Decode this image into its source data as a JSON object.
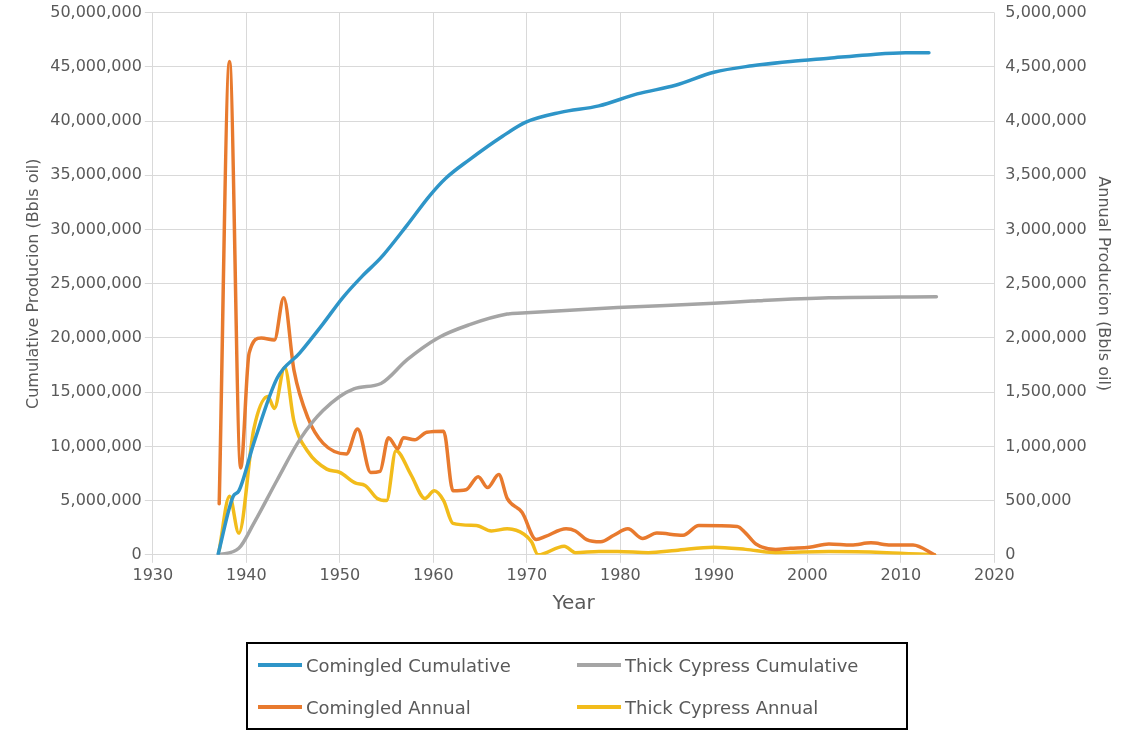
{
  "chart_data": {
    "type": "line",
    "xlabel": "Year",
    "ylabel": "Cumulative Producion (Bbls oil)",
    "y2label": "Annual Producion (Bbls oil)",
    "xlim": [
      1930,
      2020
    ],
    "xticks": [
      1930,
      1940,
      1950,
      1960,
      1970,
      1980,
      1990,
      2000,
      2010,
      2020
    ],
    "ylim": [
      0,
      50000000
    ],
    "yticks": [
      0,
      {
        "value": 5000000,
        "label": "5,000,000"
      },
      {
        "value": 10000000,
        "label": "10,000,000"
      },
      {
        "value": 15000000,
        "label": "15,000,000"
      },
      {
        "value": 20000000,
        "label": "20,000,000"
      },
      {
        "value": 25000000,
        "label": "25,000,000"
      },
      {
        "value": 30000000,
        "label": "30,000,000"
      },
      {
        "value": 35000000,
        "label": "35,000,000"
      },
      {
        "value": 40000000,
        "label": "40,000,000"
      },
      {
        "value": 45000000,
        "label": "45,000,000"
      },
      {
        "value": 50000000,
        "label": "50,000,000"
      }
    ],
    "y2lim": [
      0,
      5000000
    ],
    "y2ticks": [
      0,
      {
        "value": 500000,
        "label": "500,000"
      },
      {
        "value": 1000000,
        "label": "1,000,000"
      },
      {
        "value": 1500000,
        "label": "1,500,000"
      },
      {
        "value": 2000000,
        "label": "2,000,000"
      },
      {
        "value": 2500000,
        "label": "2,500,000"
      },
      {
        "value": 3000000,
        "label": "3,000,000"
      },
      {
        "value": 3500000,
        "label": "3,500,000"
      },
      {
        "value": 4000000,
        "label": "4,000,000"
      },
      {
        "value": 4500000,
        "label": "4,500,000"
      },
      {
        "value": 5000000,
        "label": "5,000,000"
      }
    ],
    "grid": true,
    "legend": "bottom",
    "marker": "none",
    "line_style": "solid",
    "series": [
      {
        "name": "Comingled Cumulative",
        "color": "#2e95c8",
        "x": [
          1937,
          1938.6,
          1939.2,
          1940.8,
          1943.3,
          1945.7,
          1948.2,
          1950.3,
          1952.4,
          1954.4,
          1957.2,
          1959.6,
          1961.3,
          1963.8,
          1967.4,
          1969.9,
          1973.6,
          1977.7,
          1981.8,
          1985.9,
          1990,
          1994.1,
          1998.2,
          2002.3,
          2006.4,
          2010.5,
          2013
        ],
        "values": [
          100000,
          5400000,
          5900000,
          10300000,
          16300000,
          18600000,
          21300000,
          23700000,
          25700000,
          27400000,
          30400000,
          33100000,
          34700000,
          36400000,
          38600000,
          39900000,
          40800000,
          41400000,
          42500000,
          43300000,
          44500000,
          45100000,
          45500000,
          45800000,
          46100000,
          46300000,
          46300000
        ]
      },
      {
        "name": "Thick Cypress Cumulative",
        "color": "#a5a5a5",
        "x": [
          1937,
          1939.2,
          1940.8,
          1943.3,
          1945.7,
          1948.2,
          1951.5,
          1954.4,
          1957.2,
          1960.5,
          1963.8,
          1967.9,
          1969.5,
          1979.7,
          1990,
          1994.1,
          2002.3,
          2013.8
        ],
        "values": [
          0,
          600000,
          2900000,
          6900000,
          10600000,
          13300000,
          15300000,
          15800000,
          18000000,
          20000000,
          21200000,
          22200000,
          22300000,
          22800000,
          23200000,
          23400000,
          23700000,
          23800000
        ]
      },
      {
        "name": "Comingled Annual",
        "color": "#e87a2e",
        "axis": "y2",
        "x": [
          1937.1,
          1938.2,
          1939.4,
          1940.3,
          1941.6,
          1943,
          1944,
          1945.1,
          1946.6,
          1948.2,
          1950.7,
          1951.9,
          1953.3,
          1954.3,
          1955.2,
          1956.2,
          1956.8,
          1958,
          1959.3,
          1961.1,
          1962.1,
          1963.5,
          1964.8,
          1965.8,
          1967,
          1967.9,
          1969.5,
          1971,
          1972,
          1974.2,
          1975.2,
          1976.4,
          1977.9,
          1979.3,
          1980.8,
          1982.4,
          1983.9,
          1986.7,
          1988.4,
          1992.5,
          1993.4,
          1994.5,
          1996.6,
          1998.2,
          2000.2,
          2002.3,
          2004.7,
          2006.8,
          2008.9,
          2011.3,
          2013.6
        ],
        "values": [
          470000,
          4550000,
          800000,
          1860000,
          2000000,
          1980000,
          2370000,
          1700000,
          1260000,
          1030000,
          930000,
          1160000,
          760000,
          770000,
          1080000,
          980000,
          1080000,
          1060000,
          1130000,
          1140000,
          590000,
          600000,
          720000,
          620000,
          740000,
          520000,
          390000,
          140000,
          170000,
          240000,
          220000,
          140000,
          120000,
          180000,
          240000,
          150000,
          200000,
          180000,
          270000,
          260000,
          200000,
          100000,
          50000,
          60000,
          70000,
          100000,
          90000,
          110000,
          90000,
          90000,
          0
        ]
      },
      {
        "name": "Thick Cypress Annual",
        "color": "#f2bc1b",
        "axis": "y2",
        "x": [
          1937.1,
          1938.2,
          1939.2,
          1940.8,
          1942.3,
          1943,
          1944.1,
          1945.1,
          1946.6,
          1948.6,
          1950,
          1951.7,
          1952.7,
          1954,
          1955,
          1956,
          1957.6,
          1959.1,
          1960.1,
          1961.1,
          1962.1,
          1964.6,
          1966.2,
          1967.9,
          1969.7,
          1970.5,
          1971.2,
          1974,
          1975.2,
          1977.7,
          1979.7,
          1983,
          1985.9,
          1990,
          1993.4,
          1996.6,
          2002.3,
          2008.5,
          2013.6
        ],
        "values": [
          40000,
          540000,
          200000,
          1160000,
          1460000,
          1350000,
          1730000,
          1230000,
          950000,
          790000,
          760000,
          660000,
          640000,
          520000,
          500000,
          960000,
          740000,
          520000,
          590000,
          500000,
          290000,
          270000,
          220000,
          240000,
          190000,
          120000,
          0,
          80000,
          20000,
          30000,
          30000,
          20000,
          40000,
          70000,
          50000,
          20000,
          30000,
          20000,
          0
        ]
      }
    ]
  }
}
